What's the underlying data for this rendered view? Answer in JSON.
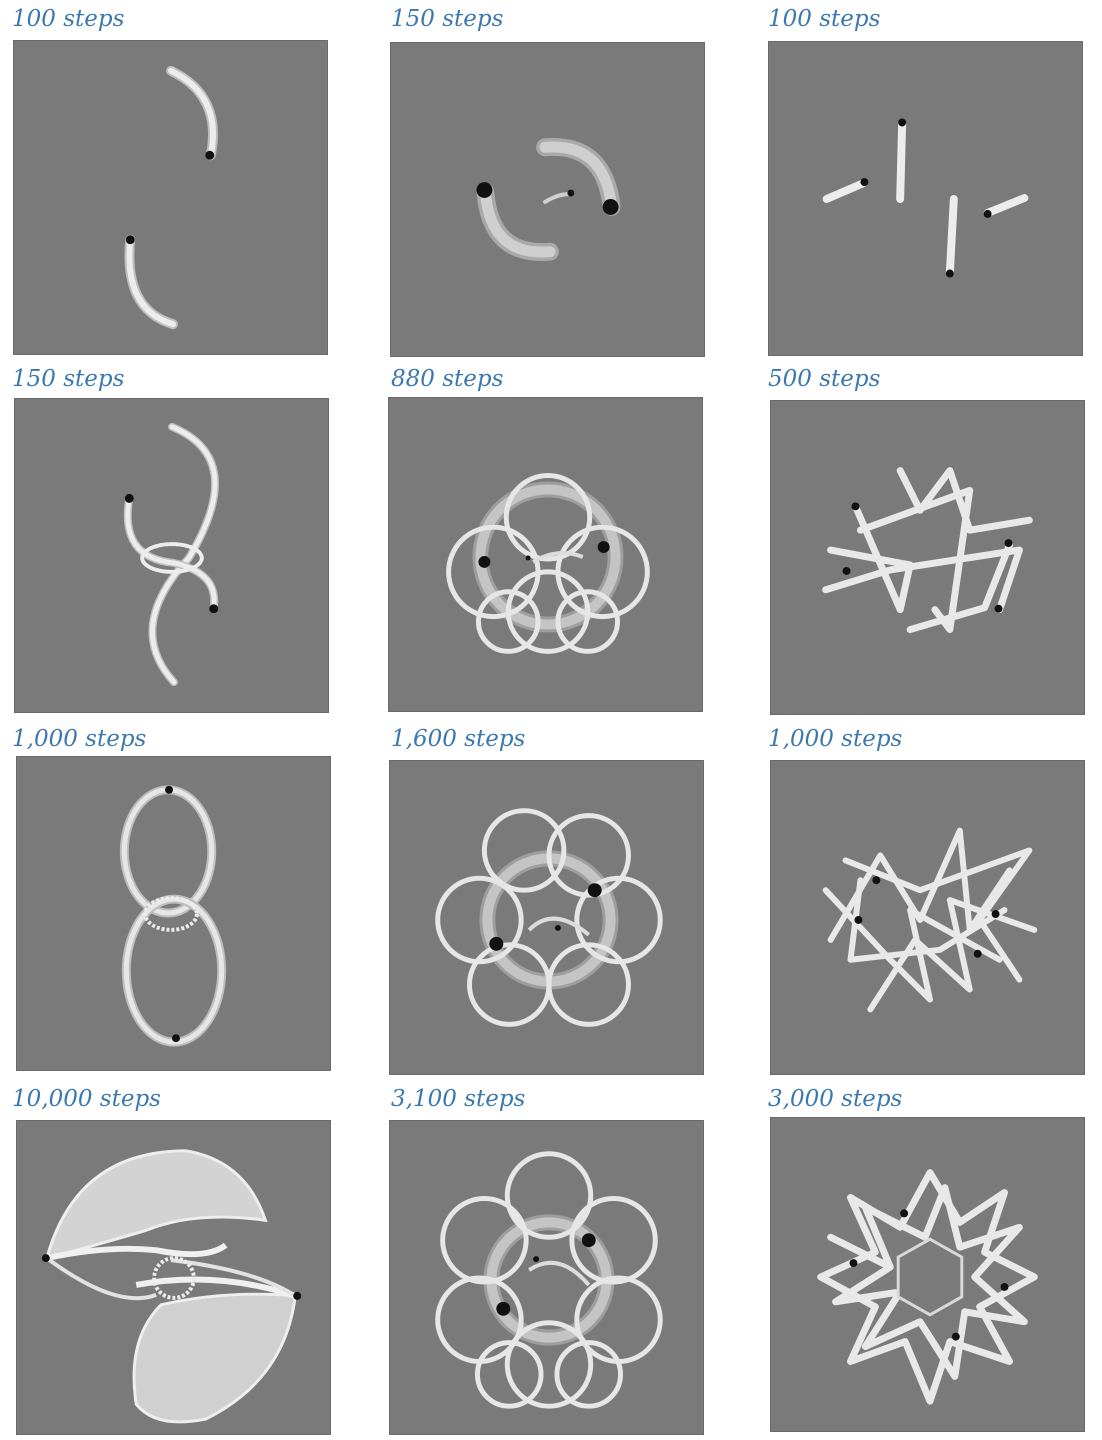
{
  "panels": [
    {
      "label": "100 steps"
    },
    {
      "label": "150 steps"
    },
    {
      "label": "100 steps"
    },
    {
      "label": "150 steps"
    },
    {
      "label": "880 steps"
    },
    {
      "label": "500 steps"
    },
    {
      "label": "1,000 steps"
    },
    {
      "label": "1,600 steps"
    },
    {
      "label": "1,000 steps"
    },
    {
      "label": "10,000 steps"
    },
    {
      "label": "3,100 steps"
    },
    {
      "label": "3,000 steps"
    }
  ],
  "colors": {
    "panel_bg": "#7a7a7a",
    "label": "#3b78b0",
    "tube": "#e6e6e6",
    "tube_shade": "#b5b5b5",
    "body": "#111111"
  }
}
